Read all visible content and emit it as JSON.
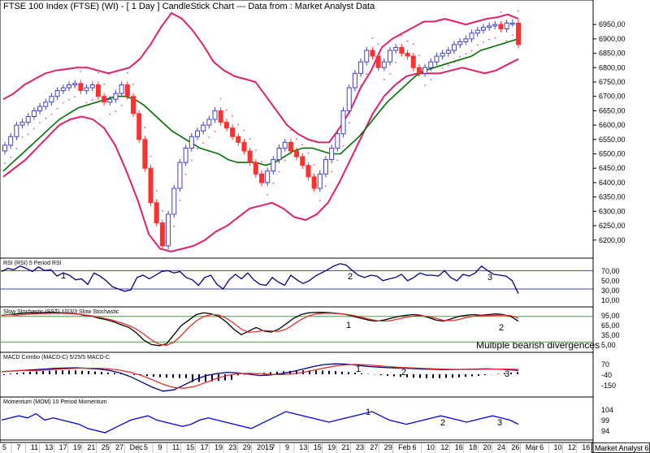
{
  "window": {
    "title": "FTSE 100 Index (FTSE) (WI) - [ 1 Day ] CandleStick Chart --- Data from : Market Analyst Data"
  },
  "colors": {
    "up": "#4040c0",
    "down": "#ff3030",
    "bollinger": "#e0206a",
    "ma": "#007000",
    "rsi": "#000080",
    "stoch_k": "#000000",
    "stoch_d": "#e03030",
    "macd_line": "#000080",
    "macd_signal": "#e03030",
    "momentum": "#0000e0",
    "guide": "#4040c0",
    "stoch_guide": "#40a040",
    "sar": "#e05080"
  },
  "branding": "Market Analyst 6",
  "annotation": "Multiple bearish divergences",
  "panels": [
    {
      "id": "rsi",
      "label": "RSI (RSI) 5 Period RSI",
      "ticks": [
        "70,00",
        "50,00",
        "30,00",
        "10,00"
      ],
      "markers": [
        "1",
        "2",
        "3"
      ]
    },
    {
      "id": "stoch",
      "label": "Slow Stochastic (SST) 10/3/3 Slow Stochastic",
      "ticks": [
        "95,00",
        "65,00",
        "35,00",
        "5,00"
      ],
      "markers": [
        "1",
        "2"
      ]
    },
    {
      "id": "macd",
      "label": "MACD Combo (MACD-C) 5/25/5 MACD-C",
      "ticks": [
        "70",
        "-40",
        "-150"
      ],
      "markers": [
        "1",
        "2",
        "3"
      ]
    },
    {
      "id": "mom",
      "label": "Momentum (MOM) 10 Period Momentum",
      "ticks": [
        "104",
        "99",
        "94"
      ],
      "markers": [
        "1",
        "2",
        "3"
      ]
    }
  ],
  "chart_data": {
    "type": "candlestick",
    "title": "FTSE 100 Index (FTSE) (WI) - [ 1 Day ] CandleStick Chart --- Data from : Market Analyst Data",
    "ylim": [
      6140,
      6990
    ],
    "yticks": [
      "6950,00",
      "6900,00",
      "6850,00",
      "6800,00",
      "6750,00",
      "6700,00",
      "6650,00",
      "6600,00",
      "6550,00",
      "6500,00",
      "6450,00",
      "6400,00",
      "6350,00",
      "6300,00",
      "6250,00",
      "6200,00"
    ],
    "x_labels": [
      "5",
      "7",
      "11",
      "13",
      "17",
      "19",
      "21",
      "25",
      "27",
      "Dec",
      "5",
      "9",
      "11",
      "15",
      "17",
      "19",
      "23",
      "29",
      "2015",
      "7",
      "9",
      "13",
      "15",
      "19",
      "21",
      "23",
      "27",
      "29",
      "Feb",
      "6",
      "10",
      "12",
      "16",
      "18",
      "20",
      "24",
      "26",
      "Mar",
      "6",
      "10",
      "12",
      "16"
    ],
    "candles_close": [
      6530,
      6560,
      6600,
      6610,
      6630,
      6650,
      6665,
      6680,
      6700,
      6720,
      6730,
      6740,
      6745,
      6720,
      6730,
      6740,
      6700,
      6680,
      6690,
      6710,
      6740,
      6700,
      6640,
      6550,
      6450,
      6330,
      6260,
      6180,
      6290,
      6380,
      6470,
      6520,
      6560,
      6580,
      6600,
      6620,
      6650,
      6610,
      6590,
      6560,
      6540,
      6510,
      6470,
      6430,
      6400,
      6440,
      6480,
      6520,
      6540,
      6510,
      6490,
      6460,
      6420,
      6380,
      6430,
      6480,
      6520,
      6570,
      6650,
      6730,
      6780,
      6820,
      6860,
      6840,
      6800,
      6820,
      6860,
      6870,
      6850,
      6840,
      6800,
      6780,
      6800,
      6820,
      6840,
      6850,
      6860,
      6880,
      6890,
      6900,
      6920,
      6930,
      6940,
      6945,
      6950,
      6935,
      6955,
      6955,
      6880
    ],
    "bollinger_upper": [
      6690,
      6710,
      6740,
      6760,
      6780,
      6790,
      6795,
      6800,
      6800,
      6790,
      6780,
      6790,
      6800,
      6830,
      6880,
      6940,
      6990,
      6970,
      6930,
      6880,
      6820,
      6790,
      6770,
      6760,
      6750,
      6700,
      6650,
      6600,
      6570,
      6550,
      6540,
      6540,
      6590,
      6650,
      6730,
      6790,
      6870,
      6900,
      6920,
      6940,
      6960,
      6960,
      6970,
      6960,
      6950,
      6960,
      6970,
      6975,
      6985,
      6970
    ],
    "bollinger_lower": [
      6420,
      6450,
      6480,
      6520,
      6560,
      6600,
      6620,
      6630,
      6620,
      6590,
      6530,
      6440,
      6340,
      6220,
      6170,
      6160,
      6170,
      6180,
      6200,
      6230,
      6250,
      6280,
      6310,
      6320,
      6330,
      6310,
      6280,
      6270,
      6290,
      6330,
      6400,
      6480,
      6560,
      6640,
      6700,
      6740,
      6770,
      6780,
      6780,
      6780,
      6790,
      6800,
      6790,
      6780,
      6790,
      6810,
      6830
    ],
    "ma": [
      6440,
      6470,
      6500,
      6530,
      6560,
      6590,
      6620,
      6640,
      6660,
      6670,
      6680,
      6690,
      6700,
      6700,
      6690,
      6670,
      6640,
      6610,
      6580,
      6560,
      6540,
      6520,
      6510,
      6500,
      6480,
      6470,
      6470,
      6470,
      6460,
      6470,
      6490,
      6510,
      6520,
      6520,
      6510,
      6500,
      6500,
      6530,
      6560,
      6600,
      6640,
      6680,
      6710,
      6740,
      6770,
      6790,
      6800,
      6810,
      6820,
      6830,
      6840,
      6860,
      6870,
      6880,
      6890,
      6900
    ],
    "rsi": [
      68,
      75,
      72,
      80,
      75,
      68,
      78,
      70,
      72,
      58,
      65,
      60,
      50,
      52,
      40,
      65,
      58,
      48,
      35,
      30,
      25,
      28,
      55,
      60,
      52,
      60,
      68,
      70,
      65,
      68,
      55,
      50,
      38,
      55,
      60,
      40,
      30,
      50,
      62,
      52,
      65,
      50,
      40,
      38,
      55,
      45,
      38,
      60,
      50,
      42,
      48,
      58,
      65,
      72,
      80,
      85,
      82,
      70,
      60,
      55,
      60,
      58,
      48,
      52,
      55,
      62,
      48,
      55,
      65,
      60,
      60,
      58,
      70,
      55,
      48,
      62,
      58,
      65,
      80,
      70,
      62,
      60,
      58,
      48,
      20
    ]
  }
}
